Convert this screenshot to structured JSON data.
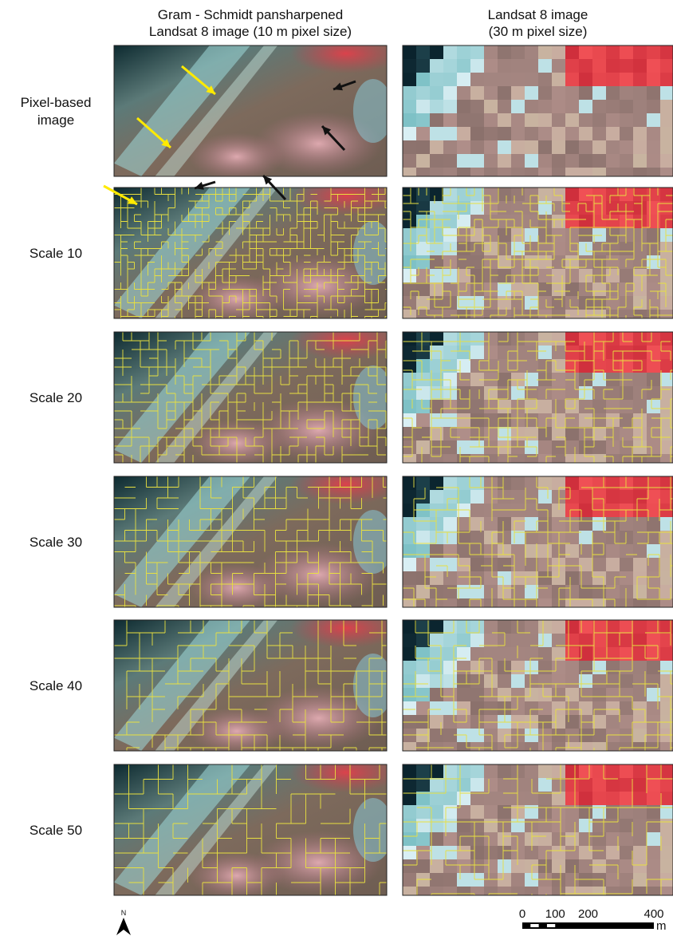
{
  "columns": [
    {
      "title_lines": [
        "Gram - Schmidt pansharpened",
        "Landsat 8 image (10 m pixel size)"
      ]
    },
    {
      "title_lines": [
        "Landsat 8 image",
        "(30 m pixel size)"
      ]
    }
  ],
  "rows": [
    {
      "label_lines": [
        "Pixel-based",
        "image"
      ]
    },
    {
      "label_lines": [
        "Scale 10"
      ]
    },
    {
      "label_lines": [
        "Scale 20"
      ]
    },
    {
      "label_lines": [
        "Scale 30"
      ]
    },
    {
      "label_lines": [
        "Scale 40"
      ]
    },
    {
      "label_lines": [
        "Scale 50"
      ]
    }
  ],
  "north_label": "N",
  "scale_bar": {
    "ticks": [
      0,
      100,
      200,
      400
    ],
    "unit": "m"
  }
}
